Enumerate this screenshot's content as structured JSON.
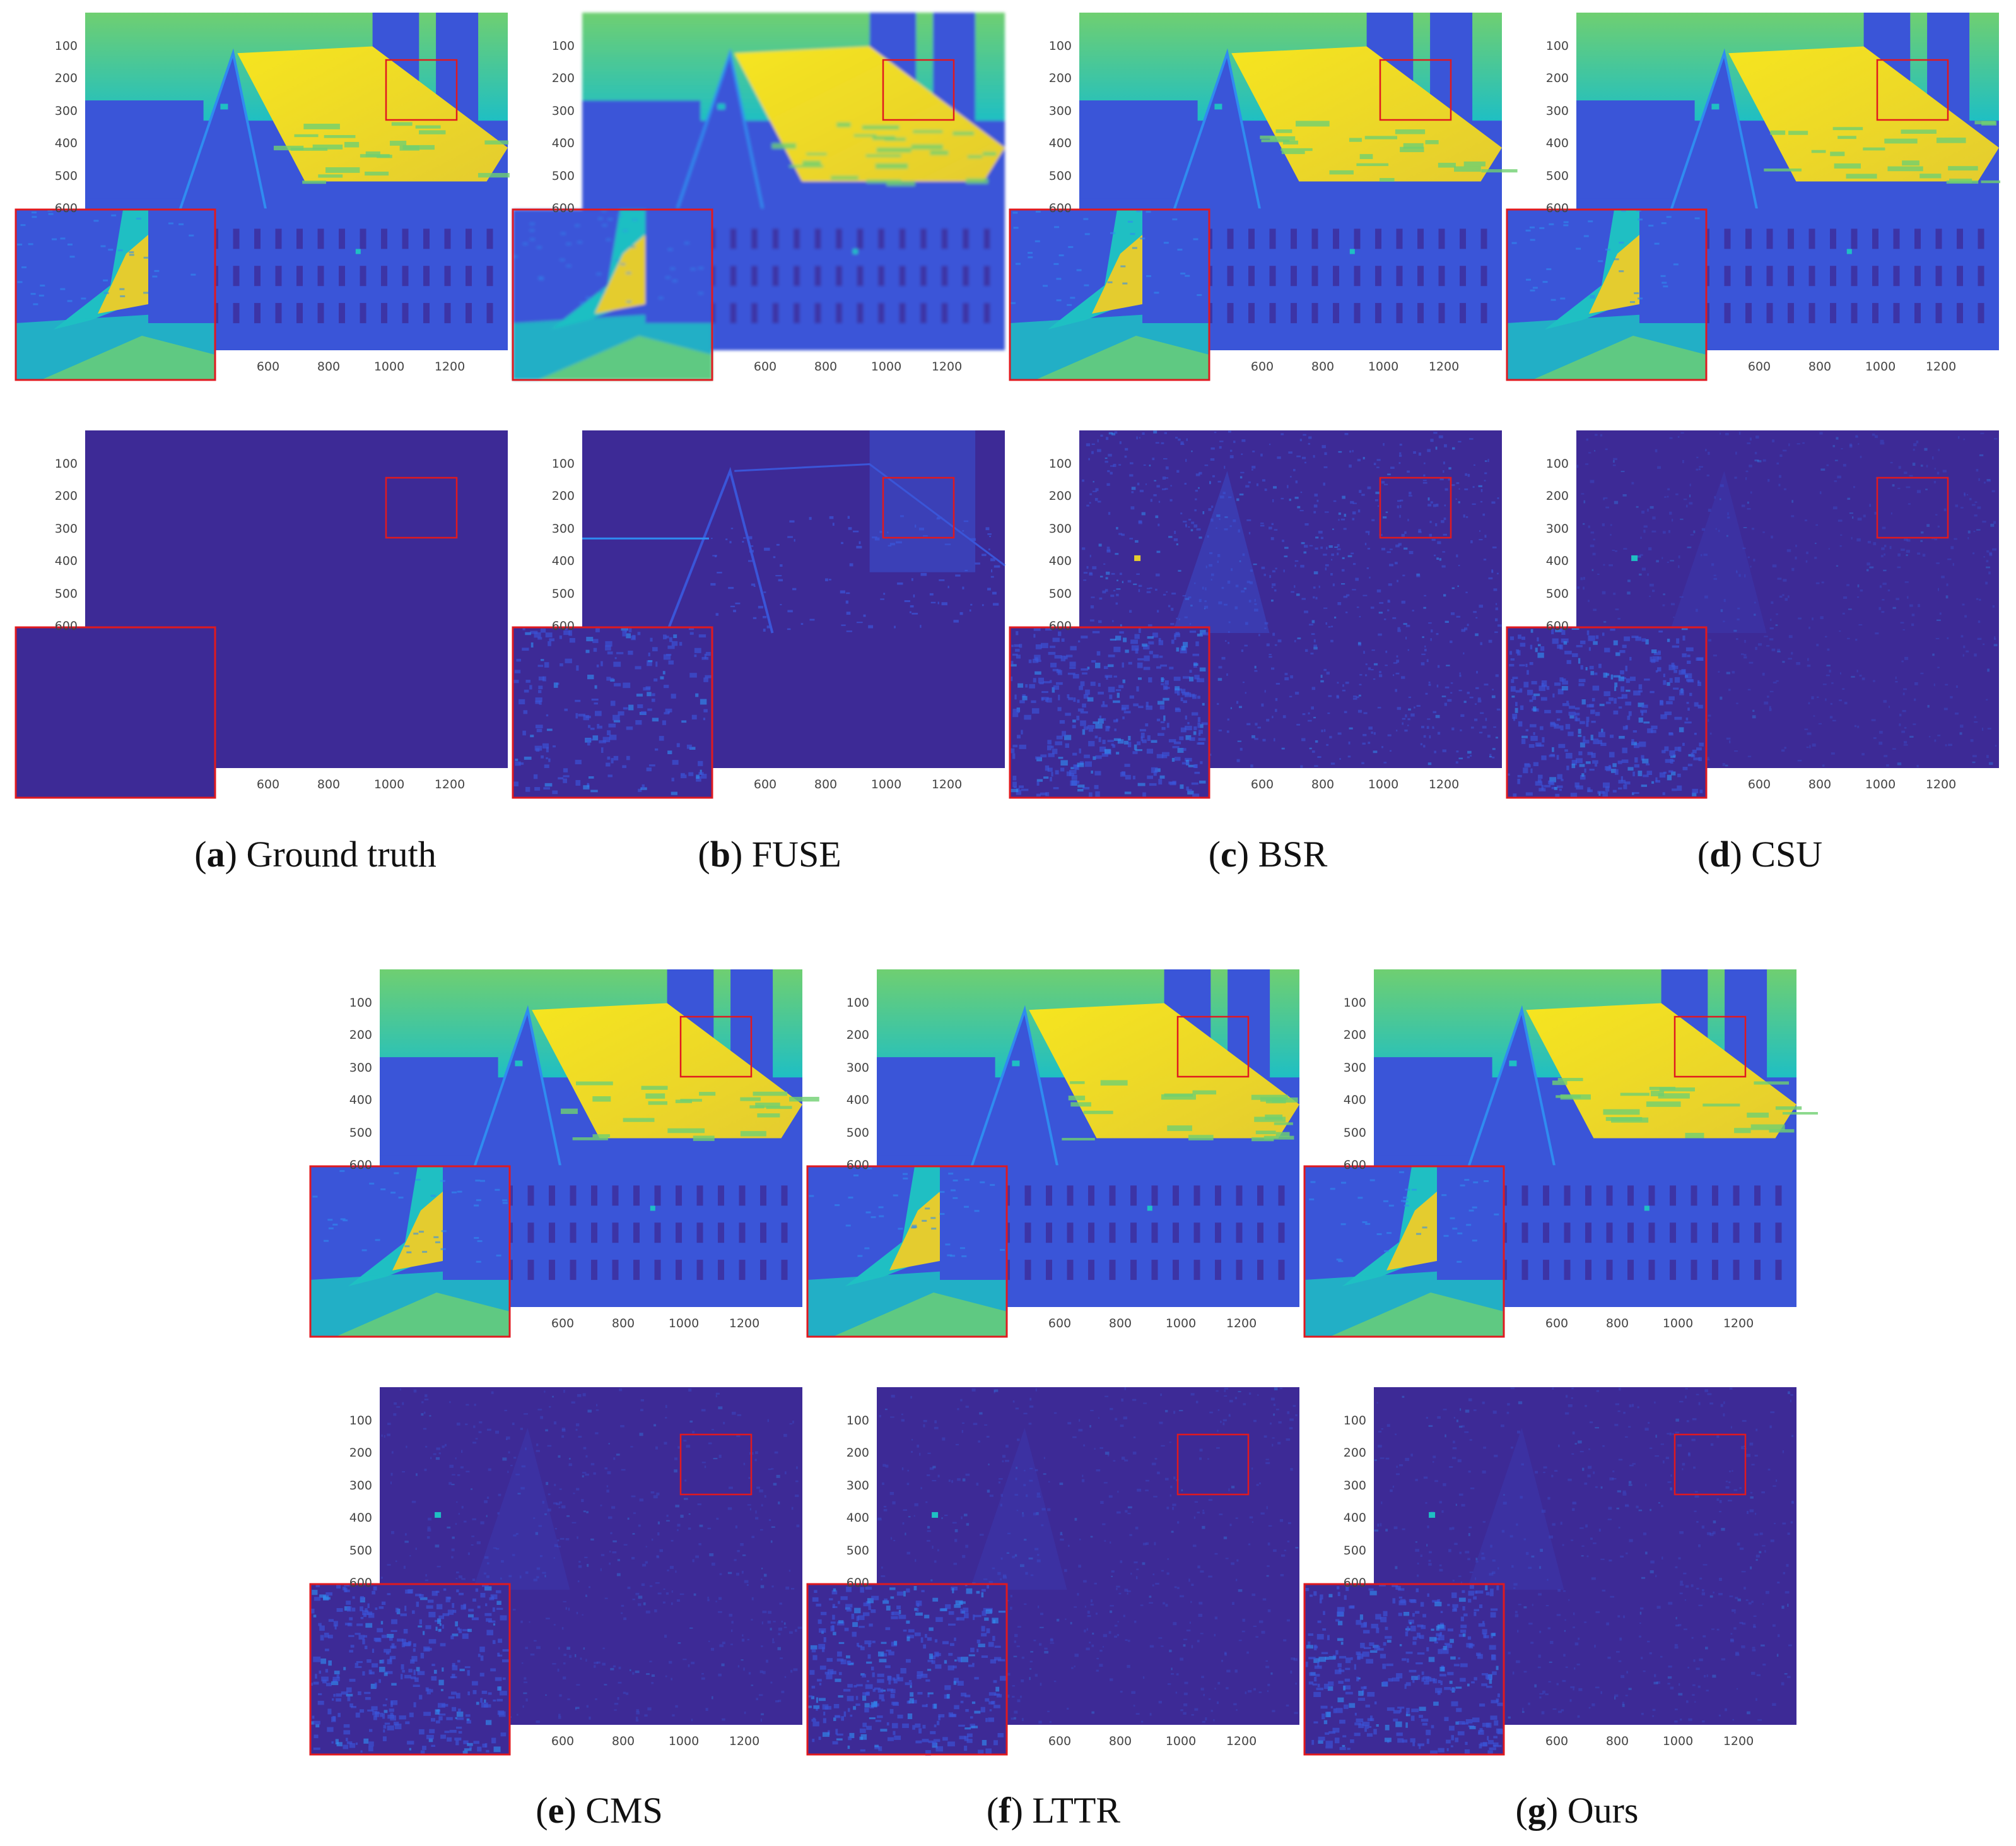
{
  "figure": {
    "captions": [
      {
        "letter": "a",
        "label": "Ground truth"
      },
      {
        "letter": "b",
        "label": "FUSE"
      },
      {
        "letter": "c",
        "label": "BSR"
      },
      {
        "letter": "d",
        "label": "CSU"
      },
      {
        "letter": "e",
        "label": "CMS"
      },
      {
        "letter": "f",
        "label": "LTTR"
      },
      {
        "letter": "g",
        "label": "Ours"
      }
    ],
    "y_ticks": [
      "100",
      "200",
      "300",
      "400",
      "500",
      "600"
    ],
    "x_ticks": [
      "600",
      "800",
      "1000",
      "1200"
    ],
    "colormap": [
      "#3d2a96",
      "#3a55d8",
      "#2f8cf0",
      "#1fbfc3",
      "#6fcf71",
      "#e4cc2f",
      "#f6e51f"
    ],
    "highlight_box_color": "#e0191f"
  }
}
